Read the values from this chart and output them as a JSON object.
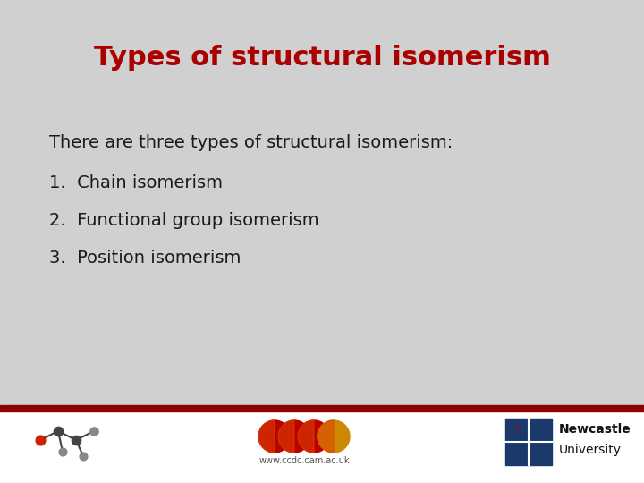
{
  "title": "Types of structural isomerism",
  "title_color": "#aa0000",
  "title_fontsize": 22,
  "background_color": "#d0d0d0",
  "footer_bg_color": "#ffffff",
  "red_bar_color": "#8b0000",
  "body_text": "There are three types of structural isomerism:",
  "body_fontsize": 14,
  "body_color": "#1a1a1a",
  "list_items": [
    "1.  Chain isomerism",
    "2.  Functional group isomerism",
    "3.  Position isomerism"
  ],
  "list_fontsize": 14,
  "list_color": "#1a1a1a",
  "footer_text": "www.ccdc.cam.ac.uk",
  "footer_fontsize": 7,
  "footer_color": "#555555",
  "newcastle_text1": "Newcastle",
  "newcastle_text2": "University",
  "newcastle_fontsize": 10,
  "fig_width": 7.2,
  "fig_height": 5.4,
  "dpi": 100
}
